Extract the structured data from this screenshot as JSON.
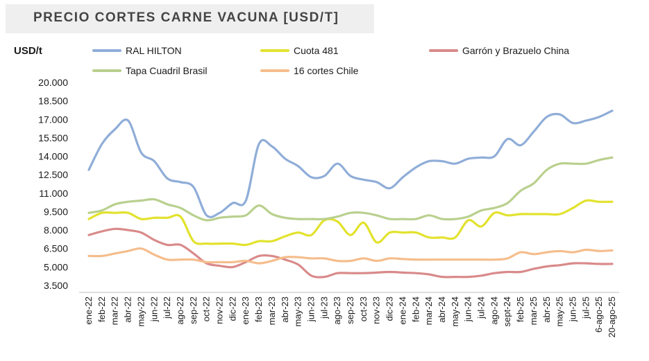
{
  "chart_data": {
    "type": "line",
    "title": "PRECIO CORTES CARNE VACUNA [USD/T]",
    "ylabel": "USD/t",
    "ylim": [
      3500,
      20000
    ],
    "y_ticks": [
      "20.000",
      "18.500",
      "17.000",
      "15.500",
      "14.000",
      "12.500",
      "11.000",
      "9.500",
      "8.000",
      "6.500",
      "5.000",
      "3.500"
    ],
    "grid": false,
    "legend_position": "top",
    "categories": [
      "ene-22",
      "feb-22",
      "mar-22",
      "abr-22",
      "may-22",
      "jun-22",
      "jul-22",
      "ago-22",
      "sep-22",
      "oct-22",
      "nov-22",
      "dic-22",
      "ene-23",
      "feb-23",
      "mar-23",
      "abr-23",
      "may-23",
      "jun-23",
      "jul-23",
      "ago-23",
      "sep-23",
      "oct-23",
      "nov-23",
      "dic-23",
      "ene-24",
      "feb-24",
      "mar-24",
      "abr-24",
      "may-24",
      "jun-24",
      "jul-24",
      "ago-24",
      "sept-24",
      "feb-25",
      "mar-25",
      "abr-25",
      "may-25",
      "jun-25",
      "jul-25",
      "6-ago-25",
      "20-ago-25"
    ],
    "series": [
      {
        "name": "RAL HILTON",
        "color": "#8fadd8",
        "values": [
          12900,
          15000,
          16200,
          16900,
          14300,
          13600,
          12200,
          11900,
          11500,
          9200,
          9400,
          10200,
          10400,
          15000,
          14800,
          13800,
          13200,
          12300,
          12400,
          13400,
          12400,
          12100,
          11900,
          11400,
          12300,
          13100,
          13600,
          13600,
          13400,
          13800,
          13900,
          14000,
          15400,
          14900,
          16000,
          17200,
          17400,
          16700,
          16900,
          17200,
          17700
        ]
      },
      {
        "name": "Cuota 481",
        "color": "#e2e22e",
        "values": [
          8900,
          9400,
          9400,
          9400,
          8900,
          9000,
          9000,
          9100,
          7100,
          6900,
          6900,
          6900,
          6800,
          7100,
          7100,
          7500,
          7800,
          7600,
          8800,
          8700,
          7600,
          8600,
          7000,
          7800,
          7800,
          7800,
          7400,
          7400,
          7400,
          8800,
          8300,
          9400,
          9200,
          9300,
          9300,
          9300,
          9300,
          9800,
          10400,
          10300,
          10300
        ]
      },
      {
        "name": "Garrón y Brazuelo China",
        "color": "#d98a8a",
        "values": [
          7600,
          7900,
          8100,
          8000,
          7800,
          7200,
          6800,
          6800,
          6100,
          5300,
          5100,
          5000,
          5400,
          5900,
          5900,
          5600,
          5200,
          4300,
          4200,
          4500,
          4500,
          4500,
          4550,
          4600,
          4550,
          4500,
          4400,
          4200,
          4200,
          4200,
          4300,
          4500,
          4600,
          4600,
          4850,
          5050,
          5150,
          5300,
          5300,
          5250,
          5250
        ]
      },
      {
        "name": "Tapa Cuadril Brasil",
        "color": "#b9d08e",
        "values": [
          9400,
          9600,
          10100,
          10300,
          10400,
          10500,
          10100,
          9800,
          9200,
          8800,
          9000,
          9100,
          9200,
          10000,
          9300,
          9000,
          8900,
          8900,
          8900,
          9100,
          9400,
          9400,
          9200,
          8900,
          8900,
          8900,
          9200,
          8900,
          8900,
          9100,
          9600,
          9800,
          10200,
          11200,
          11800,
          12900,
          13400,
          13400,
          13400,
          13700,
          13900
        ]
      },
      {
        "name": "16 cortes Chile",
        "color": "#f5bd8c",
        "values": [
          5900,
          5900,
          6100,
          6300,
          6500,
          6000,
          5600,
          5600,
          5600,
          5400,
          5400,
          5400,
          5500,
          5300,
          5500,
          5800,
          5800,
          5700,
          5700,
          5500,
          5500,
          5700,
          5500,
          5700,
          5650,
          5600,
          5600,
          5600,
          5600,
          5600,
          5600,
          5600,
          5700,
          6200,
          6050,
          6200,
          6300,
          6200,
          6400,
          6300,
          6350
        ]
      }
    ]
  }
}
